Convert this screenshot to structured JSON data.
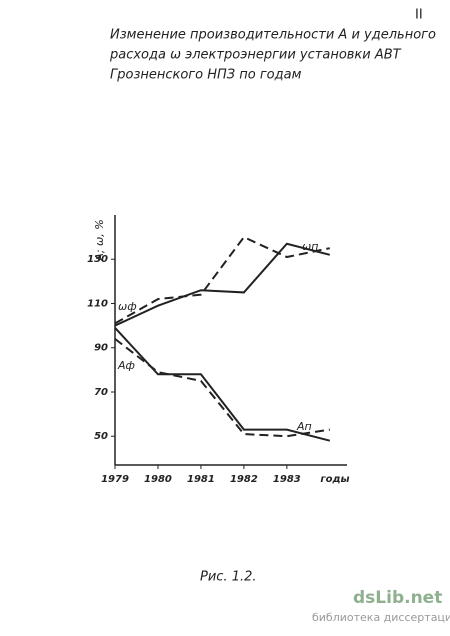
{
  "page_number": "II",
  "chart_data": {
    "type": "line",
    "title_lines": [
      "Изменение производительности А и удельного",
      "расхода ω электроэнергии установки АВТ",
      "Грозненского НПЗ по годам"
    ],
    "y_label": "А; ω, %",
    "x_label": "годы",
    "x": [
      1979,
      1980,
      1981,
      1982,
      1983,
      1984
    ],
    "xticks": [
      1979,
      1980,
      1981,
      1982,
      1983
    ],
    "xlim": [
      1979,
      1984.4
    ],
    "ylim": [
      37,
      150
    ],
    "yticks": [
      50,
      70,
      90,
      110,
      130
    ],
    "series": [
      {
        "name": "ωп",
        "color": "#222",
        "style": "solid",
        "values": [
          100,
          109,
          116,
          115,
          137,
          132
        ]
      },
      {
        "name": "ωф",
        "color": "#222",
        "style": "dashed",
        "values": [
          101,
          112,
          114,
          140,
          131,
          135
        ]
      },
      {
        "name": "Ап",
        "color": "#222",
        "style": "solid",
        "values": [
          99,
          78,
          78,
          53,
          53,
          48
        ]
      },
      {
        "name": "Аф",
        "color": "#222",
        "style": "dashed",
        "values": [
          94,
          79,
          75,
          51,
          50,
          53
        ]
      }
    ]
  },
  "caption": "Рис. 1.2.",
  "watermark": {
    "brand": "dsLib.net",
    "tagline": "библиотека диссертаций"
  }
}
